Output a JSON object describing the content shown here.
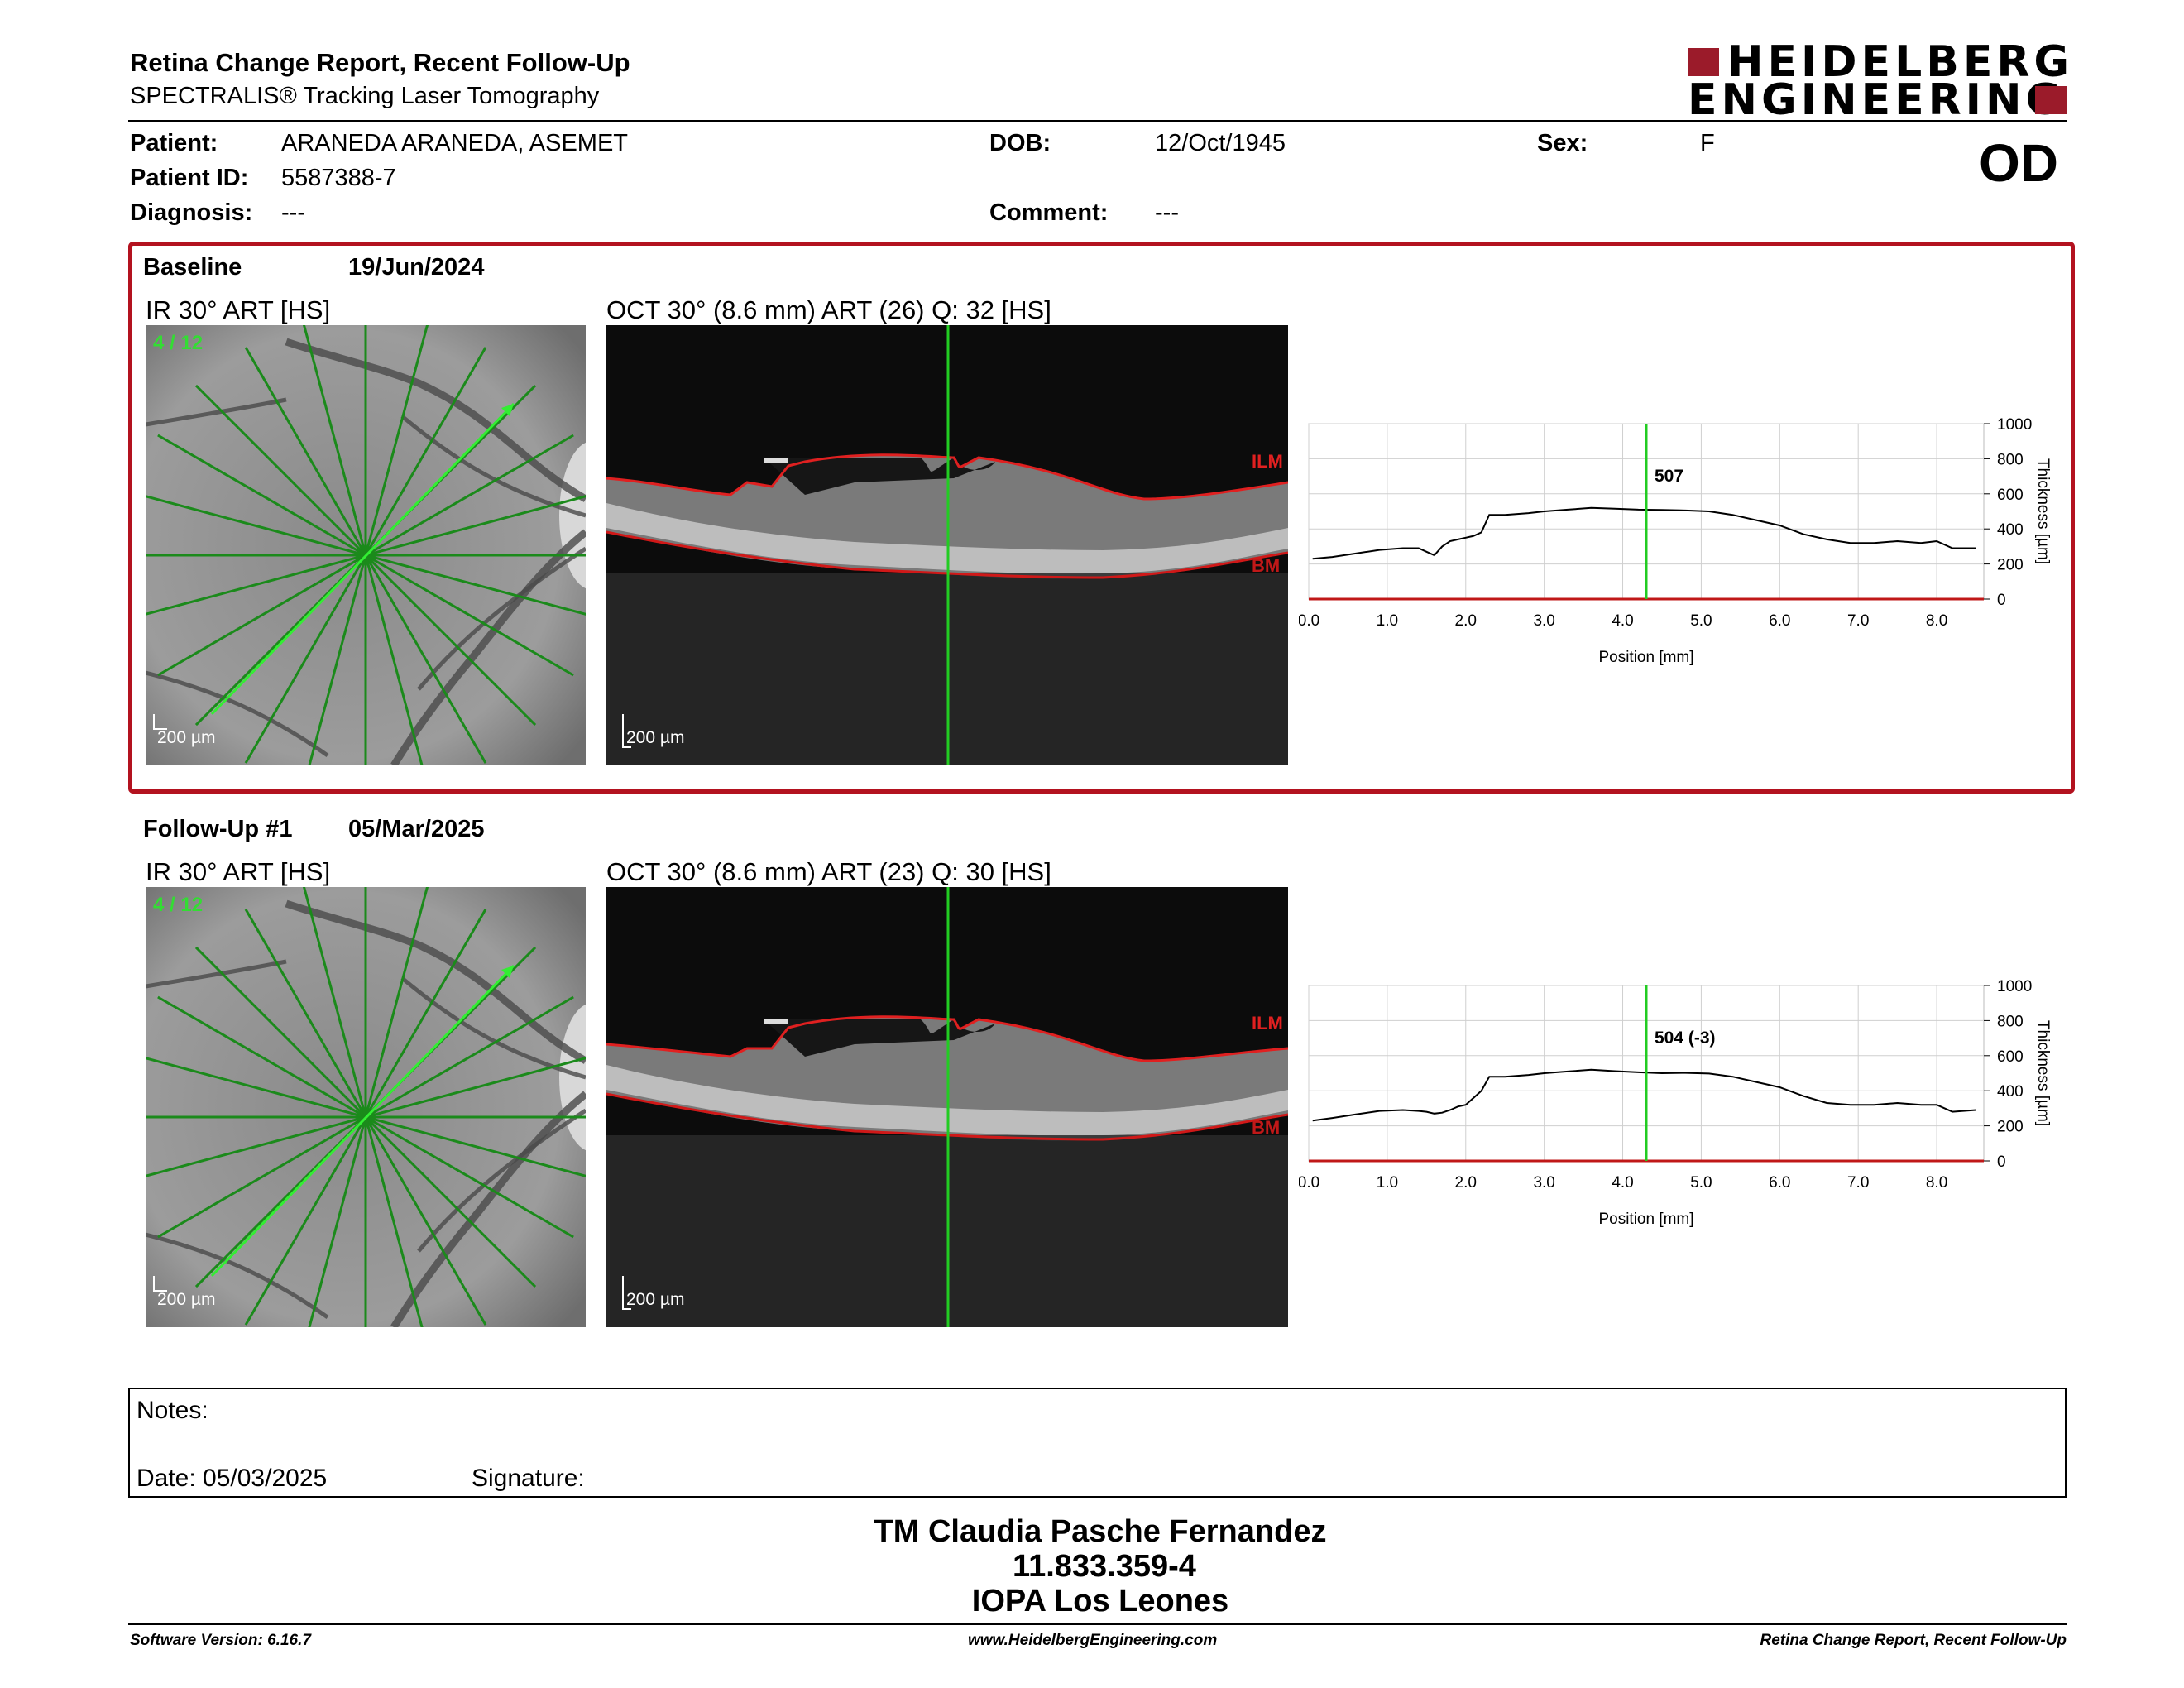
{
  "header": {
    "title": "Retina Change Report, Recent Follow-Up",
    "subtitle": "SPECTRALIS® Tracking Laser Tomography",
    "logo_line1": "HEIDELBERG",
    "logo_line2": "ENGINEERING",
    "eye": "OD"
  },
  "patient": {
    "name_label": "Patient:",
    "name": "ARANEDA ARANEDA, ASEMET",
    "id_label": "Patient ID:",
    "id": "5587388-7",
    "diagnosis_label": "Diagnosis:",
    "diagnosis": "---",
    "dob_label": "DOB:",
    "dob": "12/Oct/1945",
    "comment_label": "Comment:",
    "comment": "---",
    "sex_label": "Sex:",
    "sex": "F"
  },
  "baseline": {
    "label": "Baseline",
    "date": "19/Jun/2024",
    "ir_title": "IR 30° ART [HS]",
    "scan_index": "4 / 12",
    "ir_scale": "200 µm",
    "oct_title": "OCT 30° (8.6 mm) ART (26) Q: 32 [HS]",
    "oct_scale": "200 µm",
    "ilm_label": "ILM",
    "bm_label": "BM",
    "thickness_readout": "507"
  },
  "followup": {
    "label": "Follow-Up #1",
    "date": "05/Mar/2025",
    "ir_title": "IR 30° ART [HS]",
    "scan_index": "4 / 12",
    "ir_scale": "200 µm",
    "oct_title": "OCT 30° (8.6 mm) ART (23) Q: 30 [HS]",
    "oct_scale": "200 µm",
    "ilm_label": "ILM",
    "bm_label": "BM",
    "thickness_readout": "504 (-3)"
  },
  "chart_data": [
    {
      "type": "line",
      "xlabel": "Position [mm]",
      "ylabel": "Thickness [µm]",
      "xlim": [
        0,
        8.6
      ],
      "ylim": [
        0,
        1000
      ],
      "x_ticks": [
        "0.0",
        "1.0",
        "2.0",
        "3.0",
        "4.0",
        "5.0",
        "6.0",
        "7.0",
        "8.0"
      ],
      "y_ticks": [
        "0",
        "200",
        "400",
        "600",
        "800",
        "1000"
      ],
      "grid": true,
      "cursor_x": 4.3,
      "series": [
        {
          "x": [
            0.05,
            0.3,
            0.6,
            0.9,
            1.2,
            1.4,
            1.5,
            1.6,
            1.7,
            1.8,
            1.9,
            2.0,
            2.1,
            2.2,
            2.3,
            2.35,
            2.5,
            2.8,
            3.0,
            3.3,
            3.6,
            3.9,
            4.2,
            4.5,
            4.8,
            5.1,
            5.4,
            5.7,
            6.0,
            6.3,
            6.6,
            6.9,
            7.2,
            7.5,
            7.8,
            8.0,
            8.2,
            8.5
          ],
          "y": [
            230,
            240,
            260,
            280,
            290,
            290,
            270,
            250,
            300,
            330,
            340,
            350,
            360,
            380,
            480,
            480,
            480,
            490,
            500,
            510,
            520,
            515,
            510,
            508,
            505,
            500,
            480,
            450,
            420,
            370,
            340,
            320,
            320,
            330,
            320,
            330,
            290,
            290
          ]
        }
      ]
    },
    {
      "type": "line",
      "xlabel": "Position [mm]",
      "ylabel": "Thickness [µm]",
      "xlim": [
        0,
        8.6
      ],
      "ylim": [
        0,
        1000
      ],
      "x_ticks": [
        "0.0",
        "1.0",
        "2.0",
        "3.0",
        "4.0",
        "5.0",
        "6.0",
        "7.0",
        "8.0"
      ],
      "y_ticks": [
        "0",
        "200",
        "400",
        "600",
        "800",
        "1000"
      ],
      "grid": true,
      "cursor_x": 4.3,
      "series": [
        {
          "x": [
            0.05,
            0.3,
            0.6,
            0.9,
            1.2,
            1.4,
            1.5,
            1.6,
            1.7,
            1.8,
            1.9,
            2.0,
            2.1,
            2.2,
            2.3,
            2.35,
            2.5,
            2.8,
            3.0,
            3.3,
            3.6,
            3.9,
            4.2,
            4.5,
            4.8,
            5.1,
            5.4,
            5.7,
            6.0,
            6.3,
            6.6,
            6.9,
            7.2,
            7.5,
            7.8,
            8.0,
            8.2,
            8.5
          ],
          "y": [
            230,
            245,
            265,
            285,
            290,
            285,
            280,
            270,
            275,
            290,
            310,
            320,
            360,
            400,
            480,
            480,
            480,
            490,
            500,
            510,
            520,
            512,
            505,
            500,
            502,
            498,
            480,
            450,
            420,
            370,
            330,
            320,
            320,
            330,
            320,
            320,
            280,
            290
          ]
        }
      ]
    }
  ],
  "notes": {
    "notes_label": "Notes:",
    "date_label": "Date: 05/03/2025",
    "signature_label": "Signature:"
  },
  "operator": {
    "name": "TM Claudia Pasche Fernandez",
    "id": "11.833.359-4",
    "site": "IOPA Los Leones"
  },
  "footer": {
    "software": "Software Version: 6.16.7",
    "website": "www.HeidelbergEngineering.com",
    "report_name": "Retina Change Report, Recent Follow-Up"
  },
  "colors": {
    "frame": "#b3121f",
    "logo": "#9b1b2a",
    "scan_green": "#33dd33",
    "ilm": "#e02020"
  }
}
